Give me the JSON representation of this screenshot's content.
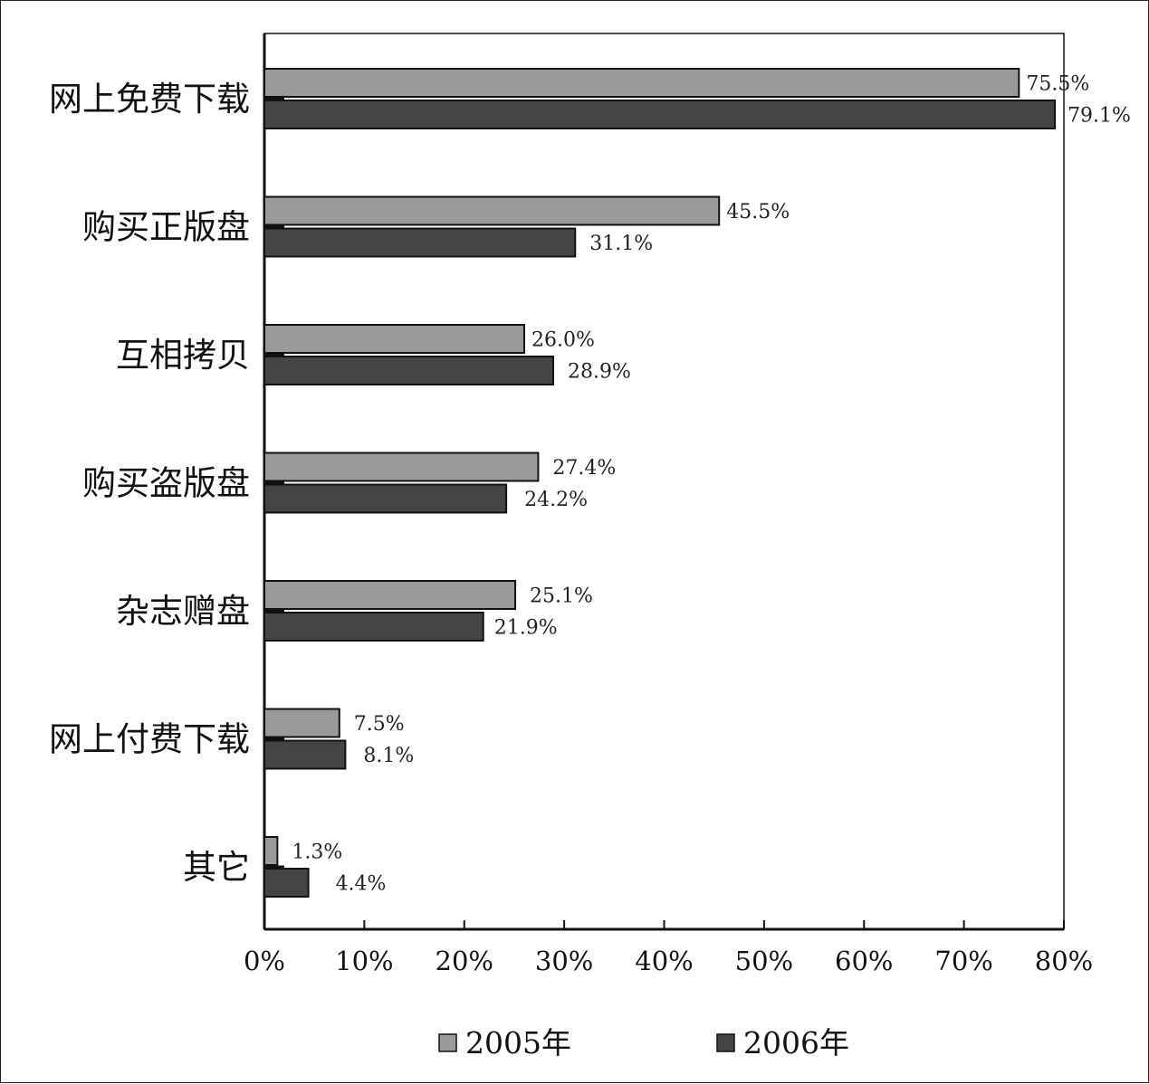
{
  "chart_data": {
    "type": "bar",
    "orientation": "horizontal",
    "categories": [
      "网上免费下载",
      "购买正版盘",
      "互相拷贝",
      "购买盗版盘",
      "杂志赠盘",
      "网上付费下载",
      "其它"
    ],
    "series": [
      {
        "name": "2005年",
        "color": "#9a9a9a",
        "values": [
          75.5,
          45.5,
          26.0,
          27.4,
          25.1,
          7.5,
          1.3
        ],
        "labels": [
          "75.5%",
          "45.5%",
          "26.0%",
          "27.4%",
          "25.1%",
          "7.5%",
          "1.3%"
        ]
      },
      {
        "name": "2006年",
        "color": "#444444",
        "values": [
          79.1,
          31.1,
          28.9,
          24.2,
          21.9,
          8.1,
          4.4
        ],
        "labels": [
          "79.1%",
          "31.1%",
          "28.9%",
          "24.2%",
          "21.9%",
          "8.1%",
          "4.4%"
        ]
      }
    ],
    "xlim": [
      0,
      80
    ],
    "xticks": [
      0,
      10,
      20,
      30,
      40,
      50,
      60,
      70,
      80
    ],
    "xtick_labels": [
      "0%",
      "10%",
      "20%",
      "30%",
      "40%",
      "50%",
      "60%",
      "70%",
      "80%"
    ],
    "grid": false,
    "legend_position": "bottom",
    "title": "",
    "xlabel": "",
    "ylabel": ""
  }
}
